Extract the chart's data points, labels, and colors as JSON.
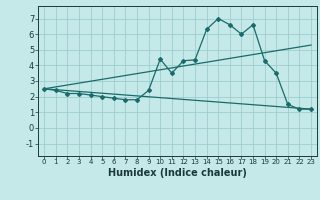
{
  "xlabel": "Humidex (Indice chaleur)",
  "background_color": "#c5e8e8",
  "grid_color": "#9ecece",
  "line_color": "#1a6b6b",
  "xlim": [
    -0.5,
    23.5
  ],
  "ylim": [
    -1.8,
    7.8
  ],
  "xticks": [
    0,
    1,
    2,
    3,
    4,
    5,
    6,
    7,
    8,
    9,
    10,
    11,
    12,
    13,
    14,
    15,
    16,
    17,
    18,
    19,
    20,
    21,
    22,
    23
  ],
  "yticks": [
    -1,
    0,
    1,
    2,
    3,
    4,
    5,
    6,
    7
  ],
  "line1_x": [
    0,
    1,
    2,
    3,
    4,
    5,
    6,
    7,
    8,
    9,
    10,
    11,
    12,
    13,
    14,
    15,
    16,
    17,
    18,
    19,
    20,
    21,
    22,
    23
  ],
  "line1_y": [
    2.5,
    2.4,
    2.2,
    2.2,
    2.1,
    2.0,
    1.9,
    1.8,
    1.8,
    2.4,
    4.4,
    3.5,
    4.3,
    4.35,
    6.3,
    7.0,
    6.6,
    6.0,
    6.6,
    4.3,
    3.5,
    1.5,
    1.2,
    1.2
  ],
  "line2_x": [
    0,
    23
  ],
  "line2_y": [
    2.5,
    5.3
  ],
  "line3_x": [
    0,
    23
  ],
  "line3_y": [
    2.5,
    1.2
  ],
  "xlabel_fontsize": 7,
  "tick_fontsize_x": 5,
  "tick_fontsize_y": 6
}
